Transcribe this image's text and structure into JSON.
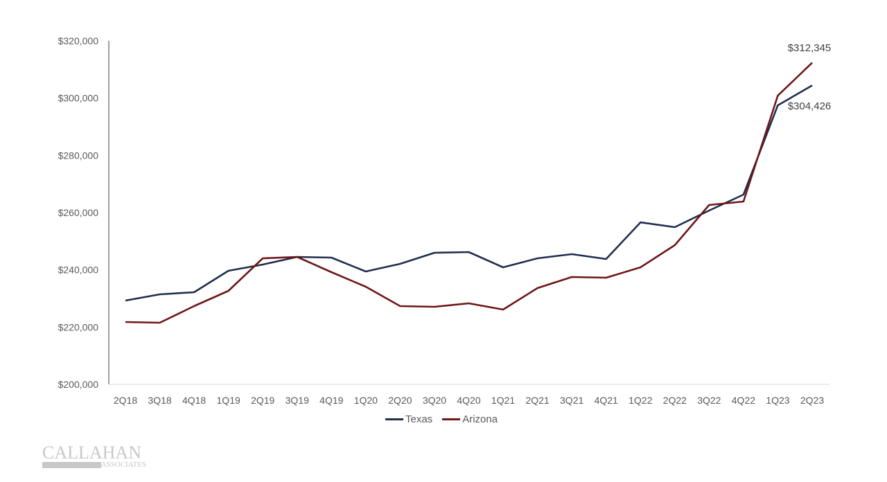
{
  "chart_data": {
    "type": "line",
    "title": "",
    "xlabel": "",
    "ylabel": "",
    "ylim": [
      200000,
      320000
    ],
    "yticks": [
      "$200,000",
      "$220,000",
      "$240,000",
      "$260,000",
      "$280,000",
      "$300,000",
      "$320,000"
    ],
    "ytick_values": [
      200000,
      220000,
      240000,
      260000,
      280000,
      300000,
      320000
    ],
    "categories": [
      "2Q18",
      "3Q18",
      "4Q18",
      "1Q19",
      "2Q19",
      "3Q19",
      "4Q19",
      "1Q20",
      "2Q20",
      "3Q20",
      "4Q20",
      "1Q21",
      "2Q21",
      "3Q21",
      "4Q21",
      "1Q22",
      "2Q22",
      "3Q22",
      "4Q22",
      "1Q23",
      "2Q23"
    ],
    "series": [
      {
        "name": "Texas",
        "color": "#1f2d4e",
        "values": [
          229270,
          231450,
          232170,
          239670,
          241850,
          244510,
          244270,
          239430,
          242090,
          245960,
          246200,
          240880,
          244030,
          245480,
          243780,
          256600,
          254910,
          260720,
          266280,
          297480,
          304426
        ],
        "end_label": "$304,426"
      },
      {
        "name": "Arizona",
        "color": "#6e1516",
        "values": [
          221770,
          221530,
          227330,
          232660,
          244030,
          244510,
          239190,
          234110,
          227330,
          227090,
          228300,
          226130,
          233620,
          237490,
          237250,
          240880,
          248620,
          262650,
          263860,
          300870,
          312345
        ],
        "end_label": "$312,345"
      }
    ],
    "grid": false,
    "legend_position": "bottom-center"
  },
  "logo": {
    "name": "CALLAHAN",
    "sub": "ASSOCIATES"
  }
}
